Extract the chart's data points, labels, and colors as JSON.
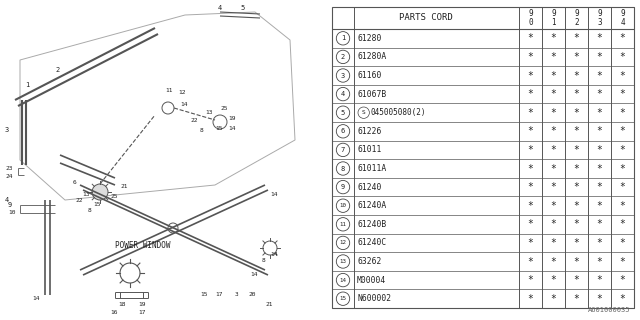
{
  "bg_color": "#ffffff",
  "line_color": "#555555",
  "text_color": "#222222",
  "diagram_id": "A601000035",
  "table": {
    "header": [
      "PARTS CORD",
      "9\n0",
      "9\n1",
      "9\n2",
      "9\n3",
      "9\n4"
    ],
    "rows": [
      [
        "1",
        "61280"
      ],
      [
        "2",
        "61280A"
      ],
      [
        "3",
        "61160"
      ],
      [
        "4",
        "61067B"
      ],
      [
        "5",
        "S045005080(2)"
      ],
      [
        "6",
        "61226"
      ],
      [
        "7",
        "61011"
      ],
      [
        "8",
        "61011A"
      ],
      [
        "9",
        "61240"
      ],
      [
        "10",
        "61240A"
      ],
      [
        "11",
        "61240B"
      ],
      [
        "12",
        "61240C"
      ],
      [
        "13",
        "63262"
      ],
      [
        "14",
        "M00004"
      ],
      [
        "15",
        "N600002"
      ]
    ]
  }
}
